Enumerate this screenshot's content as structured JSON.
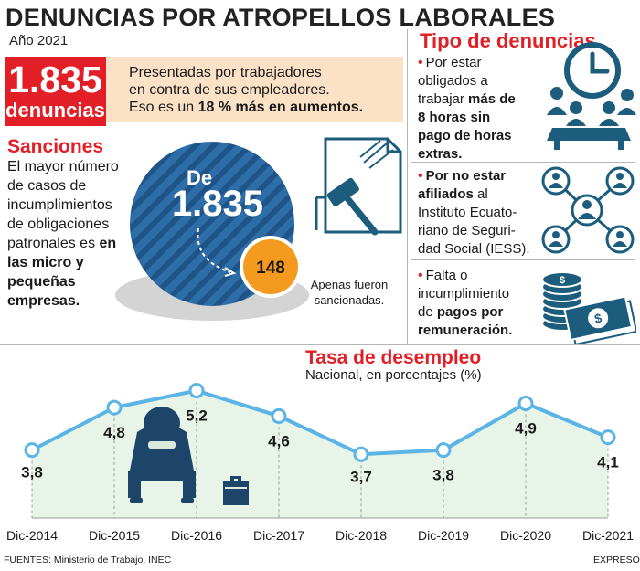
{
  "header": {
    "title": "DENUNCIAS POR ATROPELLOS LABORALES",
    "subtitle": "Año 2021"
  },
  "summary": {
    "big_number": "1.835",
    "big_label": "denuncias",
    "line1": "Presentadas por trabajadores",
    "line2": "en contra de sus empleadores.",
    "line3_a": "Eso es un ",
    "line3_b": "18 % más en aumentos."
  },
  "sanciones": {
    "heading": "Sanciones",
    "text_lines": [
      "El mayor número",
      "de casos de",
      "incumplimientos",
      "de obligaciones"
    ],
    "line5_a": "patronales es ",
    "line5_b": "en",
    "line6": "las micro y",
    "line7": "pequeñas",
    "line8": "empresas.",
    "circle_de": "De",
    "circle_total": "1.835",
    "sanctioned": "148",
    "sanctioned_label_1": "Apenas fueron",
    "sanctioned_label_2": "sancionadas."
  },
  "tipo": {
    "heading": "Tipo de denuncias",
    "item1_lines": [
      "Por estar",
      "obligados a"
    ],
    "item1_line3_a": "trabajar ",
    "item1_line3_b": "más de",
    "item1_bold_lines": [
      "8 horas sin",
      "pago de horas",
      "extras."
    ],
    "item2_line1": "Por no estar",
    "item2_line2_a": "afiliados",
    "item2_line2_b": " al",
    "item2_lines": [
      "Instituto Ecuato-",
      "riano de Seguri-",
      "dad Social (IESS)."
    ],
    "item3_lines": [
      "Falta o",
      "incumplimiento"
    ],
    "item3_line3_a": "de ",
    "item3_line3_b": "pagos por",
    "item3_line4": "remuneración."
  },
  "chart": {
    "heading": "Tasa de desempleo",
    "subheading": "Nacional, en porcentajes (%)"
  },
  "chart_data": {
    "type": "area",
    "title": "Tasa de desempleo",
    "subtitle": "Nacional, en porcentajes (%)",
    "categories": [
      "Dic-2014",
      "Dic-2015",
      "Dic-2016",
      "Dic-2017",
      "Dic-2018",
      "Dic-2019",
      "Dic-2020",
      "Dic-2021"
    ],
    "values": [
      3.8,
      4.8,
      5.2,
      4.6,
      3.7,
      3.8,
      4.9,
      4.1
    ],
    "labels": [
      "3,8",
      "4,8",
      "5,2",
      "4,6",
      "3,7",
      "3,8",
      "4,9",
      "4,1"
    ],
    "ylim": [
      2.2,
      5.9
    ],
    "xlabel": "",
    "ylabel": ""
  },
  "footer": {
    "sources": "FUENTES: Ministerio de Trabajo, INEC",
    "brand": "EXPRESO"
  },
  "colors": {
    "red": "#e21f26",
    "navy": "#1e4a78",
    "steel": "#2e6ea8",
    "teal": "#1c5d7e",
    "orange": "#f39a1f",
    "chart_line": "#5ab4e5",
    "chart_fill": "#e8f4e8",
    "beige": "#fbe2c6"
  }
}
